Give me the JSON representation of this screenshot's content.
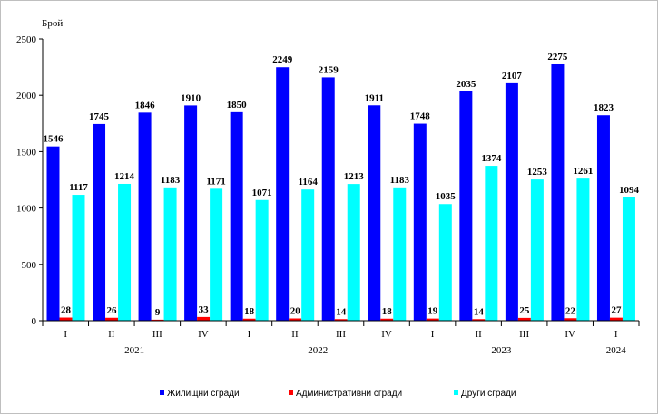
{
  "chart_data": {
    "type": "bar",
    "ylabel": "Брой",
    "ylim": [
      0,
      2500
    ],
    "yticks": [
      0,
      500,
      1000,
      1500,
      2000,
      2500
    ],
    "categories": [
      "I",
      "II",
      "III",
      "IV",
      "I",
      "II",
      "III",
      "IV",
      "I",
      "II",
      "III",
      "IV",
      "I"
    ],
    "years": [
      {
        "label": "2021",
        "span": [
          0,
          3
        ]
      },
      {
        "label": "2022",
        "span": [
          4,
          7
        ]
      },
      {
        "label": "2023",
        "span": [
          8,
          11
        ]
      },
      {
        "label": "2024",
        "span": [
          12,
          12
        ]
      }
    ],
    "series": [
      {
        "name": "Жилищни сгради",
        "color": "#0000ff",
        "values": [
          1546,
          1745,
          1846,
          1910,
          1850,
          2249,
          2159,
          1911,
          1748,
          2035,
          2107,
          2275,
          1823
        ]
      },
      {
        "name": "Административни сгради",
        "color": "#ff0000",
        "values": [
          28,
          26,
          9,
          33,
          18,
          20,
          14,
          18,
          19,
          14,
          25,
          22,
          27
        ]
      },
      {
        "name": "Други сгради",
        "color": "#00ffff",
        "values": [
          1117,
          1214,
          1183,
          1171,
          1071,
          1164,
          1213,
          1183,
          1035,
          1374,
          1253,
          1261,
          1094
        ]
      }
    ],
    "legend_position": "bottom"
  }
}
